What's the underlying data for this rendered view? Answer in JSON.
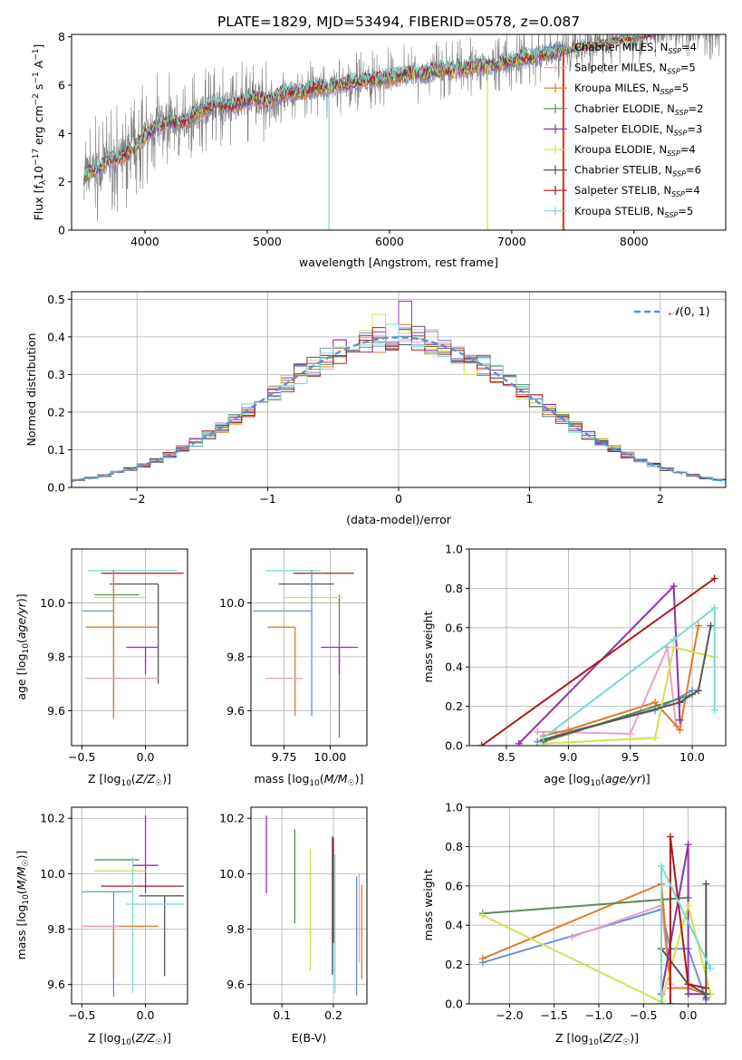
{
  "figure": {
    "title": "PLATE=1829, MJD=53494, FIBERID=0578, z=0.087"
  },
  "chart_data": [
    {
      "id": "spectrum",
      "type": "line",
      "title": "PLATE=1829, MJD=53494, FIBERID=0578, z=0.087",
      "xlabel": "wavelength [Angstrom, rest frame]",
      "ylabel": "Flux [f_λ 10^-17 erg cm^-2 s^-1 A^-1]",
      "xlim": [
        3400,
        8750
      ],
      "ylim": [
        0,
        8.1
      ],
      "xticks": [
        4000,
        5000,
        6000,
        7000,
        8000
      ],
      "yticks": [
        0,
        2,
        4,
        6,
        8
      ],
      "grid": false,
      "legend_position": "right",
      "data_color": "#808080",
      "x": [
        3500,
        3600,
        3700,
        3800,
        3900,
        4000,
        4100,
        4200,
        4300,
        4400,
        4500,
        4600,
        4700,
        4800,
        4900,
        5000,
        5100,
        5200,
        5300,
        5400,
        5500,
        5600,
        5700,
        5800,
        5900,
        6000,
        6100,
        6200,
        6300,
        6400,
        6500,
        6600,
        6700,
        6800,
        6900,
        7000,
        7100,
        7200,
        7300,
        7400,
        7500,
        7600,
        7700,
        7800,
        7900,
        8000,
        8100,
        8200,
        8300
      ],
      "model": [
        2.2,
        2.5,
        2.9,
        3.0,
        3.3,
        3.9,
        4.3,
        4.5,
        4.4,
        4.8,
        5.0,
        5.2,
        5.1,
        5.3,
        5.5,
        5.3,
        5.6,
        5.7,
        5.7,
        5.9,
        5.9,
        6.0,
        6.1,
        6.2,
        6.2,
        6.3,
        6.4,
        6.5,
        6.5,
        6.6,
        6.6,
        6.7,
        6.8,
        6.8,
        6.9,
        7.0,
        7.1,
        7.2,
        7.3,
        7.4,
        7.5,
        7.6,
        7.7,
        7.8,
        7.9,
        8.0,
        8.1,
        8.2,
        8.3
      ],
      "series": [
        {
          "name": "Chabrier MILES, N_SSP=4",
          "color": "#6a8fd8"
        },
        {
          "name": "Salpeter MILES, N_SSP=5",
          "color": "#e8a0c8"
        },
        {
          "name": "Kroupa MILES, N_SSP=5",
          "color": "#e07a28"
        },
        {
          "name": "Chabrier ELODIE, N_SSP=2",
          "color": "#5a8a5a"
        },
        {
          "name": "Salpeter ELODIE, N_SSP=3",
          "color": "#9030a8"
        },
        {
          "name": "Kroupa ELODIE, N_SSP=4",
          "color": "#d4e050"
        },
        {
          "name": "Chabrier STELIB, N_SSP=6",
          "color": "#555555"
        },
        {
          "name": "Salpeter STELIB, N_SSP=4",
          "color": "#b01818"
        },
        {
          "name": "Kroupa STELIB, N_SSP=5",
          "color": "#78d8d8"
        }
      ]
    },
    {
      "id": "residuals",
      "type": "line",
      "xlabel": "(data-model)/error",
      "ylabel": "Normed distribution",
      "xlim": [
        -2.5,
        2.5
      ],
      "ylim": [
        0,
        0.52
      ],
      "xticks": [
        -2,
        -1,
        0,
        1,
        2
      ],
      "yticks": [
        0.0,
        0.1,
        0.2,
        0.3,
        0.4,
        0.5
      ],
      "grid": true,
      "legend_position": "top-right",
      "reference": {
        "name": "N(0,1)",
        "mean": 0,
        "sigma": 1,
        "color": "#5b8fd6"
      },
      "bin_width": 0.1,
      "spikes": [
        {
          "x": 0.05,
          "y": 0.495,
          "color": "#9030a8"
        },
        {
          "x": -0.15,
          "y": 0.46,
          "color": "#d4e050"
        },
        {
          "x": 0.55,
          "y": 0.3,
          "color": "#d4e050"
        }
      ]
    },
    {
      "id": "age-vs-Z",
      "type": "scatter",
      "xlabel": "Z [log10(Z/Z☉)]",
      "ylabel": "age [log10(age/yr)]",
      "xlim": [
        -0.58,
        0.33
      ],
      "ylim": [
        9.47,
        10.2
      ],
      "xticks": [
        -0.5,
        0.0
      ],
      "yticks": [
        9.6,
        9.8,
        10.0
      ],
      "grid": true,
      "points": [
        {
          "x": -0.2,
          "y": 10.12,
          "xerr": [
            0.25,
            0.45
          ],
          "yerr": [
            0.0,
            0.0
          ],
          "color": "#78d8d8"
        },
        {
          "x": -0.05,
          "y": 10.11,
          "xerr": [
            0.3,
            0.35
          ],
          "yerr": [
            0.0,
            0.0
          ],
          "color": "#b01818"
        },
        {
          "x": 0.1,
          "y": 10.07,
          "xerr": [
            0.38,
            0.0
          ],
          "yerr": [
            0.37,
            0.0
          ],
          "color": "#555555"
        },
        {
          "x": -0.25,
          "y": 10.03,
          "xerr": [
            0.15,
            0.2
          ],
          "yerr": [
            0.0,
            0.0
          ],
          "color": "#5a8a5a"
        },
        {
          "x": -0.3,
          "y": 10.02,
          "xerr": [
            0.1,
            0.3
          ],
          "yerr": [
            0.0,
            0.0
          ],
          "color": "#d4e050"
        },
        {
          "x": -0.25,
          "y": 9.97,
          "xerr": [
            0.25,
            0.0
          ],
          "yerr": [
            0.39,
            0.15
          ],
          "color": "#6a8fd8"
        },
        {
          "x": -0.25,
          "y": 9.91,
          "xerr": [
            0.22,
            0.35
          ],
          "yerr": [
            0.34,
            0.21
          ],
          "color": "#e07a28"
        },
        {
          "x": 0.0,
          "y": 9.835,
          "xerr": [
            0.15,
            0.1
          ],
          "yerr": [
            0.1,
            0.0
          ],
          "color": "#9030a8"
        },
        {
          "x": -0.25,
          "y": 9.72,
          "xerr": [
            0.22,
            0.35
          ],
          "yerr": [
            0.0,
            0.0
          ],
          "color": "#e8a0c8"
        }
      ]
    },
    {
      "id": "age-vs-mass",
      "type": "scatter",
      "xlabel": "mass [log10(M/M☉)]",
      "ylabel": "",
      "xlim": [
        9.57,
        10.2
      ],
      "ylim": [
        9.47,
        10.2
      ],
      "xticks": [
        9.75,
        10.0
      ],
      "yticks": [
        9.6,
        9.8,
        10.0
      ],
      "grid": true,
      "points": [
        {
          "x": 9.9,
          "y": 10.12,
          "xerr": [
            0.25,
            0.05
          ],
          "yerr": [
            0.0,
            0.0
          ],
          "color": "#78d8d8"
        },
        {
          "x": 10.0,
          "y": 10.11,
          "xerr": [
            0.2,
            0.13
          ],
          "yerr": [
            0.0,
            0.0
          ],
          "color": "#b01818"
        },
        {
          "x": 9.97,
          "y": 10.07,
          "xerr": [
            0.25,
            0.05
          ],
          "yerr": [
            0.0,
            0.0
          ],
          "color": "#555555"
        },
        {
          "x": 10.05,
          "y": 10.03,
          "xerr": [
            0.0,
            0.0
          ],
          "yerr": [
            0.53,
            0.0
          ],
          "color": "#5a8a5a"
        },
        {
          "x": 9.95,
          "y": 10.02,
          "xerr": [
            0.2,
            0.12
          ],
          "yerr": [
            0.0,
            0.0
          ],
          "color": "#d4e050"
        },
        {
          "x": 9.9,
          "y": 9.97,
          "xerr": [
            0.32,
            0.0
          ],
          "yerr": [
            0.39,
            0.15
          ],
          "color": "#6a8fd8"
        },
        {
          "x": 9.81,
          "y": 9.91,
          "xerr": [
            0.15,
            0.0
          ],
          "yerr": [
            0.33,
            0.0
          ],
          "color": "#e07a28"
        },
        {
          "x": 10.05,
          "y": 9.835,
          "xerr": [
            0.1,
            0.1
          ],
          "yerr": [
            0.1,
            0.0
          ],
          "color": "#9030a8"
        },
        {
          "x": 9.85,
          "y": 9.72,
          "xerr": [
            0.2,
            0.0
          ],
          "yerr": [
            0.0,
            0.0
          ],
          "color": "#e8a0c8"
        }
      ]
    },
    {
      "id": "mass-weight-vs-age",
      "type": "line",
      "xlabel": "age [log10(age/yr)]",
      "ylabel": "mass weight",
      "xlim": [
        8.2,
        10.27
      ],
      "ylim": [
        0,
        1
      ],
      "xticks": [
        8.5,
        9.0,
        9.5,
        10.0
      ],
      "yticks": [
        0.0,
        0.2,
        0.4,
        0.6,
        0.8,
        1.0
      ],
      "grid": true,
      "series": [
        {
          "name": "Chabrier MILES",
          "color": "#6a8fd8",
          "x": [
            8.75,
            9.0,
            9.7,
            10.0
          ],
          "y": [
            0.02,
            0.07,
            0.18,
            0.28
          ]
        },
        {
          "name": "Salpeter MILES",
          "color": "#e8a0c8",
          "x": [
            8.75,
            8.9,
            9.5,
            9.8,
            9.87
          ],
          "y": [
            0.07,
            0.07,
            0.06,
            0.5,
            0.1
          ]
        },
        {
          "name": "Kroupa MILES",
          "color": "#e07a28",
          "x": [
            8.8,
            9.0,
            9.7,
            9.9,
            10.05
          ],
          "y": [
            0.05,
            0.08,
            0.22,
            0.08,
            0.61
          ]
        },
        {
          "name": "Chabrier ELODIE",
          "color": "#5a8a5a",
          "x": [
            8.8,
            10.0
          ],
          "y": [
            0.02,
            0.26
          ]
        },
        {
          "name": "Salpeter ELODIE",
          "color": "#9030a8",
          "x": [
            8.6,
            9.85,
            9.9
          ],
          "y": [
            0.01,
            0.81,
            0.13
          ]
        },
        {
          "name": "Kroupa ELODIE",
          "color": "#d4e050",
          "x": [
            8.8,
            9.7,
            9.85,
            10.18
          ],
          "y": [
            0.01,
            0.04,
            0.5,
            0.45
          ]
        },
        {
          "name": "Chabrier STELIB",
          "color": "#555555",
          "x": [
            8.8,
            9.9,
            10.05,
            10.15
          ],
          "y": [
            0.03,
            0.22,
            0.28,
            0.61
          ]
        },
        {
          "name": "Salpeter STELIB",
          "color": "#b01818",
          "x": [
            8.3,
            10.18
          ],
          "y": [
            0.0,
            0.85
          ]
        },
        {
          "name": "Kroupa STELIB",
          "color": "#78d8d8",
          "x": [
            8.8,
            9.85,
            10.18,
            10.18
          ],
          "y": [
            0.04,
            0.54,
            0.7,
            0.18
          ]
        }
      ]
    },
    {
      "id": "mass-vs-Z",
      "type": "scatter",
      "xlabel": "Z [log10(Z/Z☉)]",
      "ylabel": "mass [log10(M/M☉)]",
      "xlim": [
        -0.58,
        0.33
      ],
      "ylim": [
        9.53,
        10.24
      ],
      "xticks": [
        -0.5,
        0.0
      ],
      "yticks": [
        9.6,
        9.8,
        10.0,
        10.2
      ],
      "grid": true,
      "points": [
        {
          "x": -0.25,
          "y": 10.05,
          "xerr": [
            0.15,
            0.2
          ],
          "yerr": [
            0.0,
            0.0
          ],
          "color": "#5a8a5a"
        },
        {
          "x": 0.0,
          "y": 10.03,
          "xerr": [
            0.1,
            0.1
          ],
          "yerr": [
            0.1,
            0.18
          ],
          "color": "#9030a8"
        },
        {
          "x": -0.3,
          "y": 10.01,
          "xerr": [
            0.1,
            0.3
          ],
          "yerr": [
            0.0,
            0.0
          ],
          "color": "#d4e050"
        },
        {
          "x": -0.05,
          "y": 9.955,
          "xerr": [
            0.3,
            0.35
          ],
          "yerr": [
            0.0,
            0.0
          ],
          "color": "#b01818"
        },
        {
          "x": -0.25,
          "y": 9.935,
          "xerr": [
            0.25,
            0.15
          ],
          "yerr": [
            0.38,
            0.0
          ],
          "color": "#6a8fd8"
        },
        {
          "x": 0.15,
          "y": 9.92,
          "xerr": [
            0.2,
            0.15
          ],
          "yerr": [
            0.29,
            0.0
          ],
          "color": "#555555"
        },
        {
          "x": -0.1,
          "y": 9.89,
          "xerr": [
            0.05,
            0.4
          ],
          "yerr": [
            0.32,
            0.17
          ],
          "color": "#78d8d8"
        },
        {
          "x": -0.25,
          "y": 9.81,
          "xerr": [
            0.25,
            0.35
          ],
          "yerr": [
            0.19,
            0.0
          ],
          "color": "#e07a28"
        },
        {
          "x": -0.3,
          "y": 9.81,
          "xerr": [
            0.2,
            0.1
          ],
          "yerr": [
            0.0,
            0.0
          ],
          "color": "#e8a0c8"
        }
      ]
    },
    {
      "id": "mass-vs-ebv",
      "type": "scatter",
      "xlabel": "E(B-V)",
      "ylabel": "",
      "xlim": [
        0.04,
        0.265
      ],
      "ylim": [
        9.53,
        10.24
      ],
      "xticks": [
        0.1,
        0.2
      ],
      "yticks": [
        9.6,
        9.8,
        10.0,
        10.2
      ],
      "grid": true,
      "points": [
        {
          "x": 0.07,
          "y": 10.07,
          "yerr": [
            0.14,
            0.14
          ],
          "color": "#9030a8"
        },
        {
          "x": 0.125,
          "y": 9.99,
          "yerr": [
            0.17,
            0.17
          ],
          "color": "#5a8a5a"
        },
        {
          "x": 0.155,
          "y": 9.87,
          "yerr": [
            0.22,
            0.22
          ],
          "color": "#d4e050"
        },
        {
          "x": 0.198,
          "y": 9.885,
          "yerr": [
            0.25,
            0.25
          ],
          "color": "#555555"
        },
        {
          "x": 0.2,
          "y": 9.94,
          "yerr": [
            0.19,
            0.19
          ],
          "color": "#b01818"
        },
        {
          "x": 0.203,
          "y": 9.82,
          "yerr": [
            0.25,
            0.25
          ],
          "color": "#78d8d8"
        },
        {
          "x": 0.245,
          "y": 9.86,
          "yerr": [
            0.3,
            0.13
          ],
          "color": "#6a8fd8"
        },
        {
          "x": 0.25,
          "y": 9.84,
          "yerr": [
            0.16,
            0.16
          ],
          "color": "#e8a0c8"
        },
        {
          "x": 0.255,
          "y": 9.82,
          "yerr": [
            0.2,
            0.14
          ],
          "color": "#e07a28"
        }
      ]
    },
    {
      "id": "mass-weight-vs-Z",
      "type": "line",
      "xlabel": "Z [log10(Z/Z☉)]",
      "ylabel": "mass weight",
      "xlim": [
        -2.45,
        0.42
      ],
      "ylim": [
        0,
        1
      ],
      "xticks": [
        -2.0,
        -1.5,
        -1.0,
        -0.5,
        0.0
      ],
      "yticks": [
        0.0,
        0.2,
        0.4,
        0.6,
        0.8,
        1.0
      ],
      "grid": true,
      "series": [
        {
          "name": "Chabrier MILES",
          "color": "#6a8fd8",
          "x": [
            -2.3,
            -0.3,
            -0.2,
            0.0,
            0.2
          ],
          "y": [
            0.21,
            0.48,
            0.28,
            0.28,
            0.02
          ]
        },
        {
          "name": "Salpeter MILES",
          "color": "#e8a0c8",
          "x": [
            -1.3,
            -0.3,
            -0.2
          ],
          "y": [
            0.34,
            0.5,
            0.1
          ]
        },
        {
          "name": "Kroupa MILES",
          "color": "#e07a28",
          "x": [
            -2.3,
            -0.3,
            -0.2,
            0.0,
            0.2
          ],
          "y": [
            0.23,
            0.61,
            0.08,
            0.08,
            0.05
          ]
        },
        {
          "name": "Chabrier ELODIE",
          "color": "#5a8a5a",
          "x": [
            -2.3,
            0.0
          ],
          "y": [
            0.46,
            0.54
          ]
        },
        {
          "name": "Salpeter ELODIE",
          "color": "#9030a8",
          "x": [
            -0.3,
            0.0,
            0.0,
            0.25
          ],
          "y": [
            0.05,
            0.81,
            0.05,
            0.05
          ]
        },
        {
          "name": "Kroupa ELODIE",
          "color": "#d4e050",
          "x": [
            -2.3,
            -0.3,
            0.0,
            0.25
          ],
          "y": [
            0.45,
            0.01,
            0.5,
            0.05
          ]
        },
        {
          "name": "Chabrier STELIB",
          "color": "#555555",
          "x": [
            -0.3,
            0.0,
            0.2,
            0.2,
            0.2
          ],
          "y": [
            0.28,
            0.1,
            0.05,
            0.61,
            0.03
          ]
        },
        {
          "name": "Salpeter STELIB",
          "color": "#b01818",
          "x": [
            -0.2,
            -0.2,
            0.0,
            0.2
          ],
          "y": [
            0.0,
            0.85,
            0.1,
            0.08
          ]
        },
        {
          "name": "Kroupa STELIB",
          "color": "#78d8d8",
          "x": [
            -0.3,
            -0.3,
            0.25
          ],
          "y": [
            0.0,
            0.7,
            0.18
          ]
        }
      ]
    }
  ]
}
